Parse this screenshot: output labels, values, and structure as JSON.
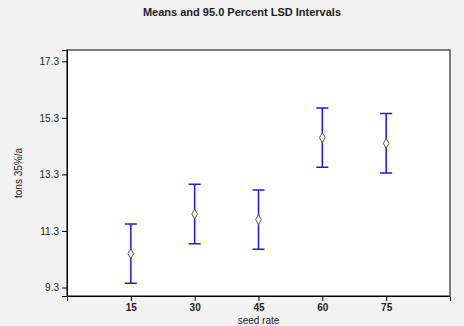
{
  "chart_data": {
    "type": "errorbar",
    "title": "Means and 95.0 Percent LSD Intervals",
    "x_label": "seed rate",
    "y_label": "tons 35%/a",
    "categories": [
      "15",
      "30",
      "45",
      "60",
      "75"
    ],
    "values": [
      10.5,
      11.9,
      11.7,
      14.6,
      14.4
    ],
    "errors": [
      1.05,
      1.05,
      1.05,
      1.05,
      1.05
    ],
    "color": "#1a1adb",
    "marker": "diamond",
    "ylim": [
      9.0,
      17.7
    ],
    "yticks": [
      9.3,
      11.3,
      13.3,
      15.3,
      17.3
    ],
    "grid": false
  }
}
